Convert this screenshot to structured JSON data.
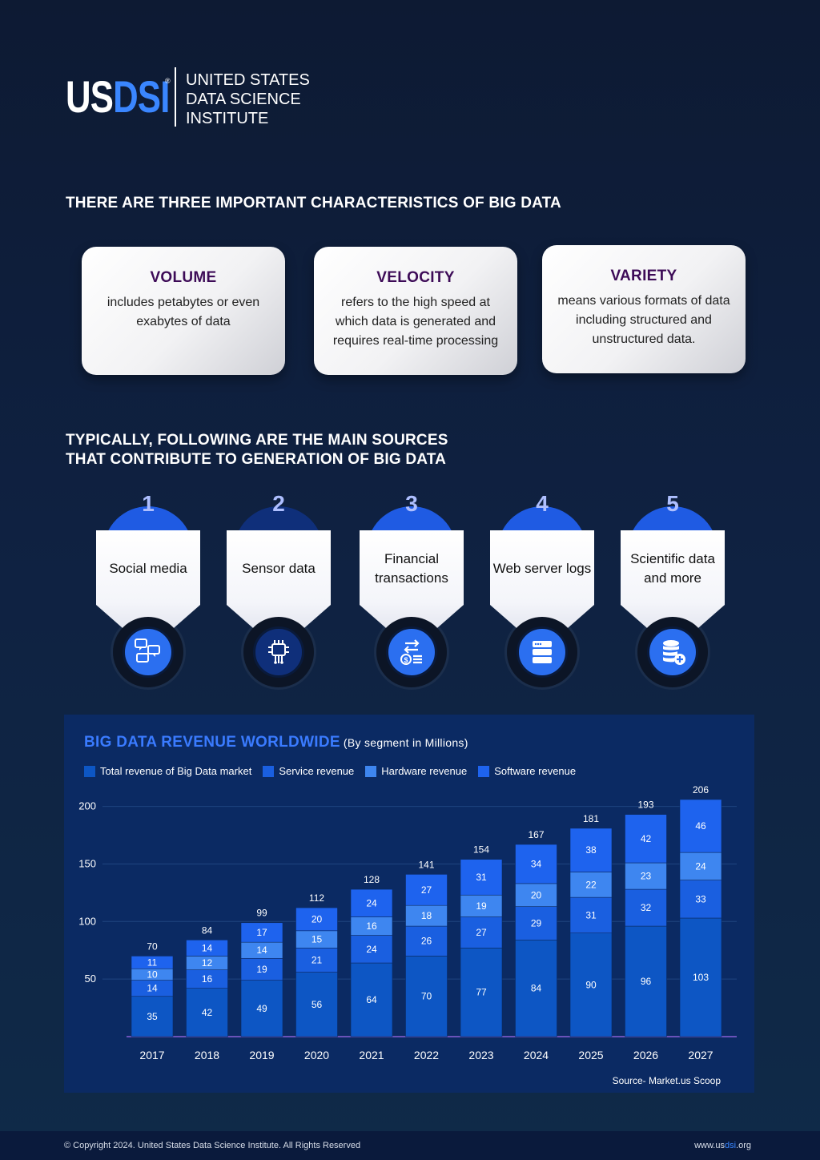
{
  "logo": {
    "us": "US",
    "dsi": "DSI",
    "reg": "®",
    "lines": [
      "UNITED STATES",
      "DATA SCIENCE",
      "INSTITUTE"
    ]
  },
  "section1_title": "THERE ARE THREE IMPORTANT CHARACTERISTICS OF BIG DATA",
  "characteristics": [
    {
      "title": "VOLUME",
      "body": "includes petabytes or even exabytes of data"
    },
    {
      "title": "VELOCITY",
      "body": "refers to the high speed at which data is generated and requires real-time processing"
    },
    {
      "title": "VARIETY",
      "body": "means various formats of data including structured and unstructured data."
    }
  ],
  "section2_title_line1": "TYPICALLY, FOLLOWING ARE THE MAIN SOURCES",
  "section2_title_line2": "THAT CONTRIBUTE TO GENERATION OF BIG DATA",
  "sources": [
    {
      "num": "1",
      "label": "Social media",
      "icon": "chat-bubbles-icon"
    },
    {
      "num": "2",
      "label": "Sensor data",
      "icon": "chip-sensor-icon"
    },
    {
      "num": "3",
      "label": "Financial transactions",
      "icon": "money-transfer-icon"
    },
    {
      "num": "4",
      "label": "Web server logs",
      "icon": "server-icon"
    },
    {
      "num": "5",
      "label": "Scientific data and more",
      "icon": "database-plus-icon"
    }
  ],
  "chart_data": {
    "type": "bar",
    "title": "BIG DATA REVENUE WORLDWIDE",
    "subtitle": "(By segment in Millions)",
    "categories": [
      "2017",
      "2018",
      "2019",
      "2020",
      "2021",
      "2022",
      "2023",
      "2024",
      "2025",
      "2026",
      "2027"
    ],
    "series": [
      {
        "name": "Total revenue of Big Data market",
        "values": [
          35,
          42,
          49,
          56,
          64,
          70,
          77,
          84,
          90,
          96,
          103
        ],
        "color": "#0d56c4"
      },
      {
        "name": "Service revenue",
        "values": [
          14,
          16,
          19,
          21,
          24,
          26,
          27,
          29,
          31,
          32,
          33
        ],
        "color": "#1a5fe0"
      },
      {
        "name": "Hardware revenue",
        "values": [
          10,
          12,
          14,
          15,
          16,
          18,
          19,
          20,
          22,
          23,
          24
        ],
        "color": "#3e86f0"
      },
      {
        "name": "Software revenue",
        "values": [
          11,
          14,
          17,
          20,
          24,
          27,
          31,
          34,
          38,
          42,
          46
        ],
        "color": "#1e63ee"
      }
    ],
    "totals": [
      70,
      84,
      99,
      112,
      128,
      141,
      154,
      167,
      181,
      193,
      206
    ],
    "y_ticks": [
      50,
      100,
      150,
      200
    ],
    "ylim": [
      0,
      206
    ],
    "stacked": true,
    "legend": "top-left",
    "grid": true,
    "source": "Source- Market.us Scoop"
  },
  "footer": {
    "copyright": "© Copyright 2024. United States Data Science Institute. All Rights Reserved",
    "site_prefix": "www.us",
    "site_hl": "dsi",
    "site_suffix": ".org"
  }
}
